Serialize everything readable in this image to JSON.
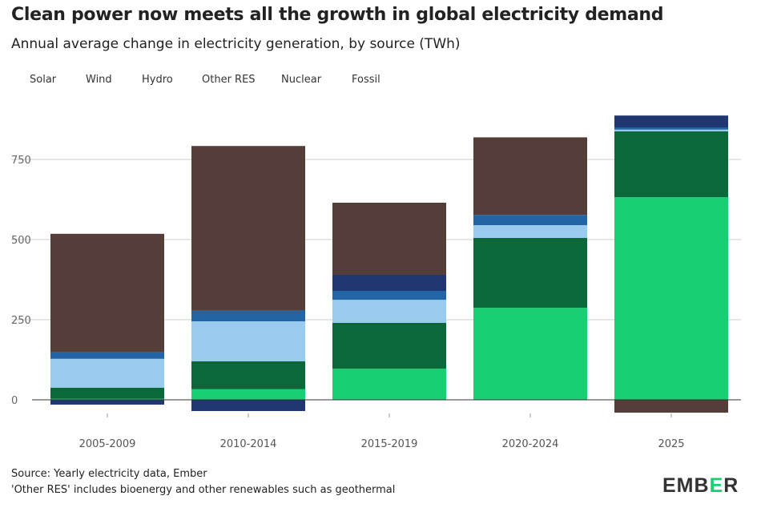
{
  "title": "Clean power now meets all the growth in global electricity demand",
  "subtitle": "Annual average change in electricity generation, by source (TWh)",
  "source": "Source: Yearly electricity data, Ember",
  "note": "'Other RES' includes bioenergy and other renewables such as geothermal",
  "logo": "EMBER",
  "chart_data": {
    "type": "bar",
    "stacked": true,
    "categories": [
      "2005-2009",
      "2010-2014",
      "2015-2019",
      "2020-2024",
      "2025"
    ],
    "ylim": [
      -50,
      900
    ],
    "yticks": [
      0,
      250,
      500,
      750
    ],
    "grid": true,
    "legend": "top-left",
    "series": [
      {
        "name": "Solar",
        "color": "#19cf73",
        "values": [
          3,
          33,
          97,
          287,
          632
        ]
      },
      {
        "name": "Wind",
        "color": "#0c673a",
        "values": [
          35,
          87,
          143,
          218,
          206
        ]
      },
      {
        "name": "Hydro",
        "color": "#99cbee",
        "values": [
          90,
          125,
          72,
          40,
          5
        ]
      },
      {
        "name": "Other RES",
        "color": "#2364a4",
        "values": [
          20,
          35,
          28,
          32,
          7
        ]
      },
      {
        "name": "Nuclear",
        "color": "#213771",
        "values": [
          -15,
          -35,
          50,
          0,
          37
        ]
      },
      {
        "name": "Fossil",
        "color": "#553e3a",
        "values": [
          370,
          512,
          225,
          242,
          -40
        ]
      }
    ]
  }
}
